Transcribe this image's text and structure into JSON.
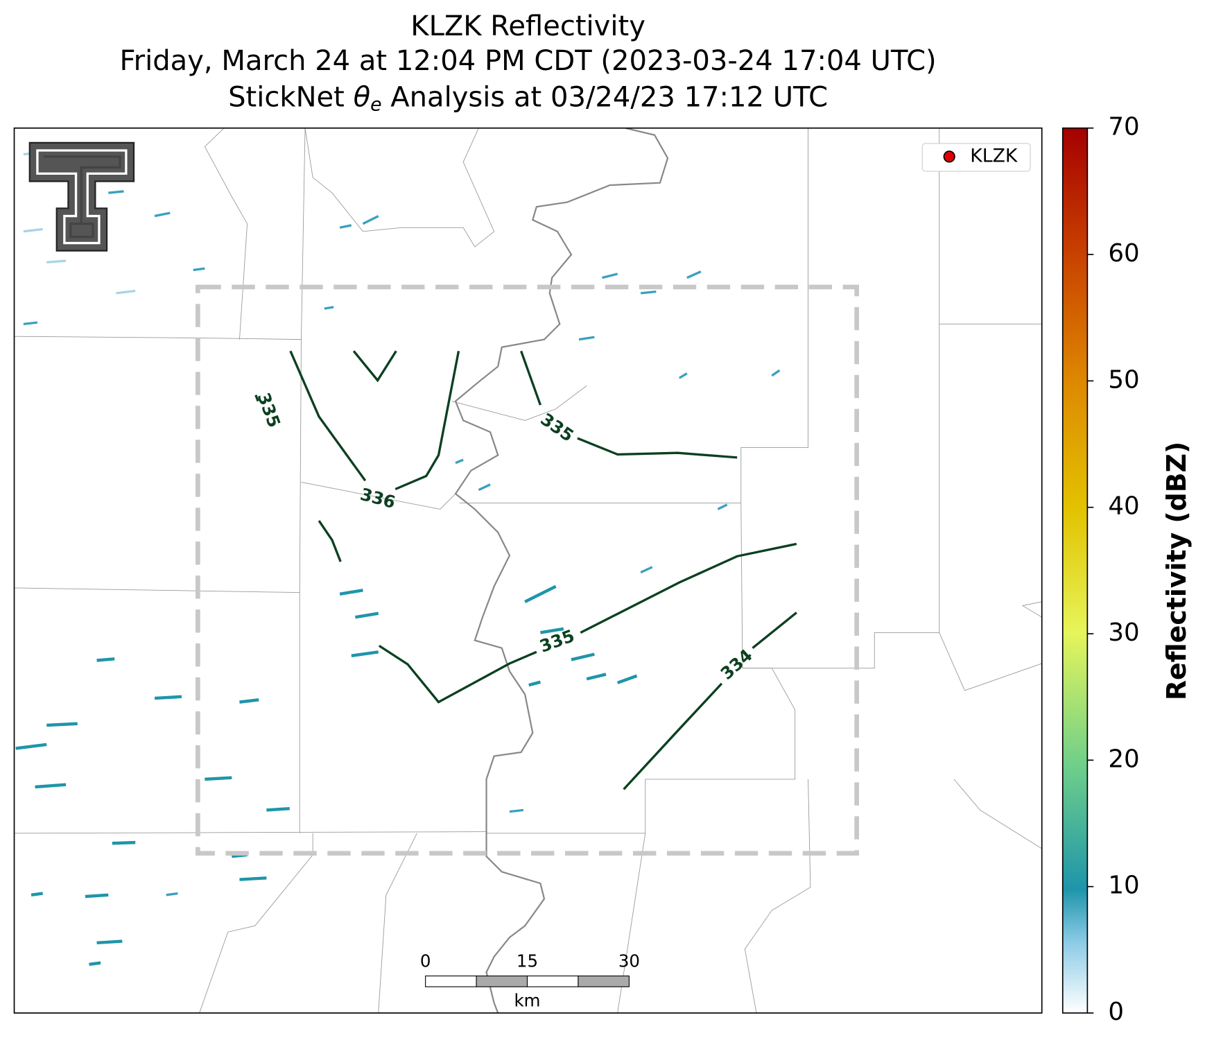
{
  "map": {
    "title_line1": "KLZK Reflectivity",
    "title_line2": "Friday, March 24 at 12:04 PM CDT (2023-03-24 17:04 UTC)",
    "title_line3": {
      "prefix": "StickNet ",
      "symbol": "θ",
      "subscript": "e",
      "suffix": " Analysis at 03/24/23 17:12 UTC"
    },
    "legend": [
      "KLZK"
    ],
    "colorbar": {
      "label": "Reflectivity (dBZ)",
      "lim": [
        0,
        70
      ],
      "ticks": [
        0,
        10,
        20,
        30,
        40,
        50,
        60,
        70
      ]
    },
    "scalebar": {
      "ticks": [
        0,
        15,
        30
      ],
      "unit": "km"
    },
    "contour_labels": [
      335,
      336,
      335,
      335,
      334
    ]
  }
}
